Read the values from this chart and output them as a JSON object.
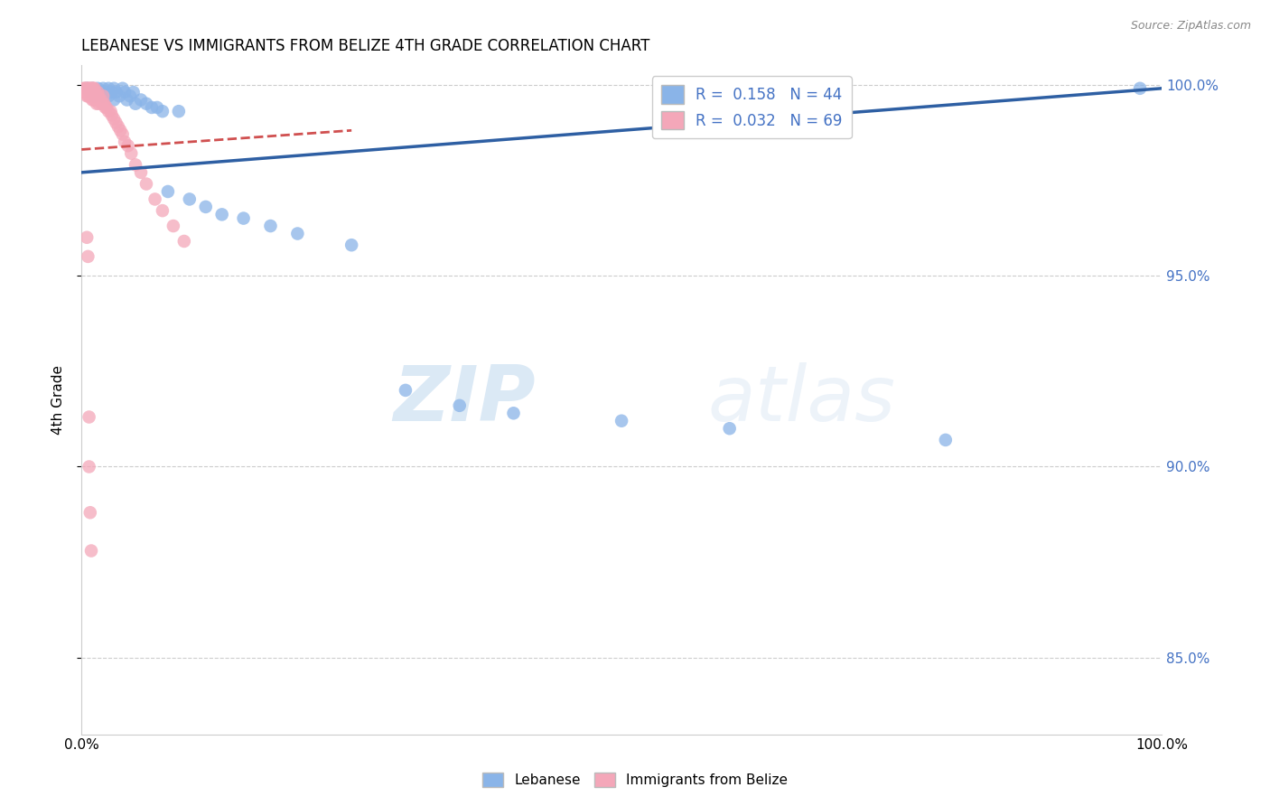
{
  "title": "LEBANESE VS IMMIGRANTS FROM BELIZE 4TH GRADE CORRELATION CHART",
  "source": "Source: ZipAtlas.com",
  "ylabel": "4th Grade",
  "xlim": [
    0.0,
    1.0
  ],
  "ylim": [
    0.83,
    1.005
  ],
  "yticks": [
    0.85,
    0.9,
    0.95,
    1.0
  ],
  "ytick_labels": [
    "85.0%",
    "90.0%",
    "95.0%",
    "100.0%"
  ],
  "xticks": [
    0.0,
    0.1,
    0.2,
    0.3,
    0.4,
    0.5,
    0.6,
    0.7,
    0.8,
    0.9,
    1.0
  ],
  "xtick_labels": [
    "0.0%",
    "",
    "",
    "",
    "",
    "",
    "",
    "",
    "",
    "",
    "100.0%"
  ],
  "legend_r1": "R =  0.158",
  "legend_n1": "N = 44",
  "legend_r2": "R =  0.032",
  "legend_n2": "N = 69",
  "blue_color": "#8ab4e8",
  "pink_color": "#f4a7b9",
  "trend_blue": "#2e5fa3",
  "trend_pink": "#d05050",
  "watermark_zip": "ZIP",
  "watermark_atlas": "atlas",
  "blue_scatter_x": [
    0.005,
    0.008,
    0.01,
    0.012,
    0.015,
    0.015,
    0.018,
    0.02,
    0.02,
    0.022,
    0.025,
    0.025,
    0.028,
    0.03,
    0.03,
    0.032,
    0.035,
    0.038,
    0.04,
    0.042,
    0.045,
    0.048,
    0.05,
    0.055,
    0.06,
    0.065,
    0.07,
    0.075,
    0.08,
    0.09,
    0.1,
    0.115,
    0.13,
    0.15,
    0.175,
    0.2,
    0.25,
    0.3,
    0.35,
    0.4,
    0.5,
    0.6,
    0.8,
    0.98
  ],
  "blue_scatter_y": [
    0.999,
    0.998,
    0.999,
    0.997,
    0.998,
    0.999,
    0.998,
    0.997,
    0.999,
    0.998,
    0.999,
    0.997,
    0.998,
    0.999,
    0.996,
    0.998,
    0.997,
    0.999,
    0.998,
    0.996,
    0.997,
    0.998,
    0.995,
    0.996,
    0.995,
    0.994,
    0.994,
    0.993,
    0.972,
    0.993,
    0.97,
    0.968,
    0.966,
    0.965,
    0.963,
    0.961,
    0.958,
    0.92,
    0.916,
    0.914,
    0.912,
    0.91,
    0.907,
    0.999
  ],
  "pink_scatter_x": [
    0.002,
    0.003,
    0.003,
    0.004,
    0.004,
    0.005,
    0.005,
    0.005,
    0.006,
    0.006,
    0.006,
    0.007,
    0.007,
    0.007,
    0.008,
    0.008,
    0.008,
    0.009,
    0.009,
    0.009,
    0.01,
    0.01,
    0.01,
    0.01,
    0.011,
    0.011,
    0.011,
    0.012,
    0.012,
    0.013,
    0.013,
    0.014,
    0.014,
    0.015,
    0.015,
    0.016,
    0.016,
    0.017,
    0.018,
    0.019,
    0.02,
    0.02,
    0.021,
    0.022,
    0.023,
    0.025,
    0.027,
    0.028,
    0.03,
    0.032,
    0.034,
    0.036,
    0.038,
    0.04,
    0.043,
    0.046,
    0.05,
    0.055,
    0.06,
    0.068,
    0.075,
    0.085,
    0.095,
    0.005,
    0.006,
    0.007,
    0.007,
    0.008,
    0.009
  ],
  "pink_scatter_y": [
    0.999,
    0.999,
    0.998,
    0.999,
    0.998,
    0.999,
    0.998,
    0.997,
    0.999,
    0.998,
    0.997,
    0.999,
    0.998,
    0.997,
    0.999,
    0.998,
    0.997,
    0.999,
    0.998,
    0.997,
    0.999,
    0.998,
    0.997,
    0.996,
    0.999,
    0.997,
    0.996,
    0.999,
    0.997,
    0.998,
    0.996,
    0.997,
    0.995,
    0.998,
    0.996,
    0.997,
    0.995,
    0.996,
    0.996,
    0.995,
    0.997,
    0.995,
    0.995,
    0.994,
    0.994,
    0.993,
    0.993,
    0.992,
    0.991,
    0.99,
    0.989,
    0.988,
    0.987,
    0.985,
    0.984,
    0.982,
    0.979,
    0.977,
    0.974,
    0.97,
    0.967,
    0.963,
    0.959,
    0.96,
    0.955,
    0.913,
    0.9,
    0.888,
    0.878
  ],
  "blue_trendline_x": [
    0.0,
    1.0
  ],
  "blue_trendline_y": [
    0.977,
    0.999
  ],
  "pink_trendline_x": [
    0.0,
    0.25
  ],
  "pink_trendline_y": [
    0.983,
    0.988
  ]
}
